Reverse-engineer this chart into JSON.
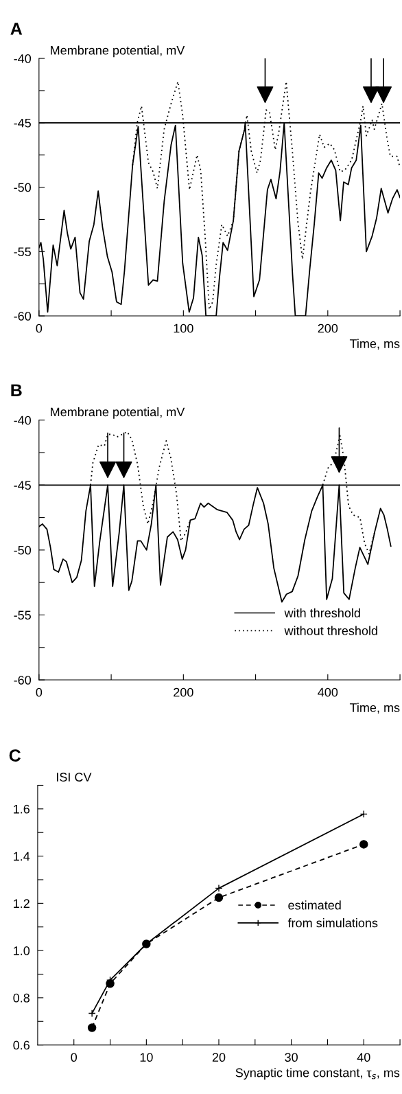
{
  "chart_data": [
    {
      "type": "line",
      "title": "A",
      "xlabel": "Time, ms",
      "ylabel": "Membrane potential, mV",
      "xlim": [
        0,
        250
      ],
      "ylim": [
        -60,
        -40
      ],
      "xticks": [
        0,
        {
          "value": 50,
          "label": null
        },
        100,
        {
          "value": 150,
          "label": null
        },
        200,
        {
          "value": 250,
          "label": null
        }
      ],
      "yticks": [
        -60,
        {
          "value": -57.5,
          "label": null
        },
        -55,
        {
          "value": -52.5,
          "label": null
        },
        -50,
        {
          "value": -47.5,
          "label": null
        },
        -45,
        {
          "value": -42.5,
          "label": null
        },
        -40
      ],
      "ref_lines": [
        {
          "axis": "y",
          "value": -45,
          "color": "#000000",
          "line_style": "solid"
        }
      ],
      "series": [
        {
          "color": "#000000",
          "line_style": "solid",
          "x": [
            0,
            1.3,
            3,
            6,
            9.8,
            12.6,
            17.4,
            19.7,
            22,
            25,
            28.4,
            30.8,
            34.8,
            38,
            41,
            44,
            47.4,
            50.6,
            53.7,
            56.9,
            59.2,
            64.8,
            68.7,
            75.8,
            79,
            82,
            86.7,
            91.5,
            94.5,
            99.5,
            104,
            107,
            110.4,
            113,
            115.6,
            122.7,
            125,
            127.5,
            130.6,
            134.6,
            138.5,
            142.4,
            142.8,
            148.8,
            152.7,
            158.2,
            160.6,
            164.2,
            166.9,
            169.8,
            175.6,
            177.5,
            184.6,
            187.4,
            190.6,
            193.7,
            196.1,
            199.2,
            202.4,
            205.5,
            208.7,
            211,
            214.2,
            216.5,
            219.7,
            222.8,
            226.7,
            230.7,
            233.8,
            237,
            241.7,
            244.8,
            248,
            250
          ],
          "values": [
            -54.7,
            -54.3,
            -55.6,
            -59.7,
            -54.5,
            -56.1,
            -51.8,
            -53.6,
            -54.8,
            -53.9,
            -58.2,
            -58.7,
            -54.2,
            -52.9,
            -50.3,
            -53.1,
            -55.4,
            -56.6,
            -58.9,
            -59.1,
            -56.5,
            -48.3,
            -45.3,
            -57.6,
            -57.2,
            -57.3,
            -51.1,
            -46.7,
            -45.2,
            -55.9,
            -59.7,
            -58.6,
            -53.9,
            -55.3,
            -60,
            -60,
            -57,
            -54.3,
            -54.9,
            -52.6,
            -47.2,
            -45.5,
            -45,
            -58.5,
            -57.2,
            -50.2,
            -49.4,
            -50.9,
            -48.8,
            -45,
            -56.8,
            -60,
            -60,
            -56.5,
            -52.9,
            -48.9,
            -49.3,
            -48.5,
            -47.9,
            -48.7,
            -52.6,
            -49.6,
            -49.8,
            -48.5,
            -47.9,
            -45.2,
            -55,
            -53.8,
            -52.4,
            -50.1,
            -52,
            -50.9,
            -50.2,
            -50.8
          ]
        },
        {
          "color": "#000000",
          "line_style": "dotted",
          "x": [
            64.8,
            68,
            71,
            75.8,
            79,
            82,
            86.7,
            91.5,
            96.2,
            99.5,
            104.2,
            109.5,
            112,
            115.2,
            117.9,
            120.3,
            122.6,
            126.6,
            130.6,
            134.6,
            138.5,
            142.4,
            144,
            147,
            151,
            153.4,
            157.3,
            159.7,
            163.6,
            166,
            171.2,
            175.4,
            179.3,
            182.5,
            184.9,
            188,
            194.3,
            197.5,
            201.4,
            204.6,
            208.5,
            211.7,
            216.5,
            222.8,
            224.4,
            226.7,
            230.7,
            232.2,
            237.5,
            241,
            243.3,
            248,
            250
          ],
          "values": [
            -48.3,
            -45,
            -43.7,
            -48.1,
            -48.8,
            -50.1,
            -45.5,
            -43.5,
            -41.8,
            -44.4,
            -50.2,
            -47.5,
            -48.7,
            -54.1,
            -59.5,
            -58.9,
            -56.1,
            -52.9,
            -53.8,
            -52.6,
            -47.2,
            -45.5,
            -44.4,
            -47.2,
            -48.9,
            -47.9,
            -44,
            -44.2,
            -47.1,
            -45.8,
            -41.8,
            -47.1,
            -52.7,
            -55.6,
            -53.3,
            -50.4,
            -45.9,
            -46.9,
            -46.6,
            -47.1,
            -48.8,
            -48.7,
            -47.9,
            -44.8,
            -43.7,
            -46,
            -44.8,
            -45.5,
            -43.5,
            -46.2,
            -47.6,
            -47.6,
            -48.5
          ]
        }
      ]
    },
    {
      "type": "line",
      "title": "B",
      "xlabel": "Time, ms",
      "ylabel": "Membrane potential, mV",
      "xlim": [
        0,
        500
      ],
      "ylim": [
        -60,
        -40
      ],
      "xticks": [
        0,
        {
          "value": 100,
          "label": null
        },
        200,
        {
          "value": 300,
          "label": null
        },
        400,
        {
          "value": 500,
          "label": null
        }
      ],
      "yticks": [
        -60,
        {
          "value": -57.5,
          "label": null
        },
        -55,
        {
          "value": -52.5,
          "label": null
        },
        -50,
        {
          "value": -47.5,
          "label": null
        },
        -45,
        {
          "value": -42.5,
          "label": null
        },
        -40
      ],
      "ref_lines": [
        {
          "axis": "y",
          "value": -45,
          "color": "#000000",
          "line_style": "solid"
        }
      ],
      "legend": "lower right",
      "series": [
        {
          "name": "with threshold",
          "color": "#000000",
          "line_style": "solid",
          "x": [
            0,
            4.8,
            11,
            15.9,
            20.6,
            27,
            33.3,
            38,
            46,
            52.4,
            58.7,
            65,
            71.4,
            76.8,
            84,
            95.2,
            102,
            111,
            117.5,
            124.4,
            128.6,
            136.5,
            141,
            149,
            155.6,
            162,
            168.3,
            177.8,
            185.7,
            192,
            198.4,
            203,
            209.5,
            216,
            223.8,
            228.6,
            234.4,
            247,
            260.3,
            268.3,
            273,
            277.7,
            284.1,
            290.4,
            296.8,
            302.5,
            311,
            317.4,
            325.3,
            336.4,
            342.8,
            350.7,
            358.7,
            368.2,
            377.7,
            385.7,
            393,
            398.4,
            406.3,
            415.8,
            422.2,
            429.5,
            438,
            444.4,
            455.5,
            465,
            473,
            477.7,
            482.5,
            487.3
          ],
          "values": [
            -48.2,
            -48,
            -48.4,
            -49.8,
            -51.5,
            -51.7,
            -50.7,
            -50.9,
            -52.5,
            -52.1,
            -50.8,
            -47,
            -45,
            -52.8,
            -49.4,
            -45,
            -52.8,
            -48.7,
            -45,
            -53.1,
            -52.4,
            -49.3,
            -49.3,
            -50,
            -48,
            -45,
            -52.7,
            -49,
            -48.6,
            -49.2,
            -50.7,
            -50,
            -47.7,
            -47.6,
            -46.4,
            -46.7,
            -46.4,
            -46.9,
            -47.1,
            -47.7,
            -48.6,
            -49.2,
            -48.4,
            -48.1,
            -46.5,
            -45.2,
            -46.4,
            -48,
            -51.4,
            -54,
            -53.4,
            -53.2,
            -52,
            -49.2,
            -47,
            -45.9,
            -45,
            -53.8,
            -52.2,
            -45,
            -53.3,
            -53.8,
            -51.4,
            -49.8,
            -51.1,
            -48.6,
            -46.8,
            -47.3,
            -48.4,
            -49.7
          ]
        },
        {
          "name": "without threshold",
          "color": "#000000",
          "line_style": "dotted",
          "x": [
            71.4,
            74.6,
            82.5,
            90.5,
            95.2,
            101.6,
            108,
            122.2,
            128.6,
            136.5,
            144.4,
            150.8,
            157.1,
            166.7,
            176.2,
            182.5,
            190.5,
            196.8,
            203,
            209.5,
            300,
            393,
            400.3,
            408.3,
            417,
            422.4,
            428.8,
            435.1,
            444.6,
            451,
            457.3,
            465
          ],
          "values": [
            -45,
            -43.3,
            -41.9,
            -42,
            -41.1,
            -41.1,
            -41.3,
            -40.9,
            -41.5,
            -43.4,
            -46.6,
            -48,
            -46.6,
            -43.6,
            -41.6,
            -42.9,
            -45.7,
            -49.3,
            -48.7,
            -47.7,
            null,
            -45,
            -43.7,
            -43.2,
            -41.2,
            -43,
            -46.6,
            -47.3,
            -47.5,
            -49.5,
            -50.3,
            -48.6
          ]
        }
      ]
    },
    {
      "type": "line",
      "title": "C",
      "xlabel": "Synaptic time constant, τ$_{s}$, ms",
      "ylabel": "ISI CV",
      "xlim": [
        -5,
        45
      ],
      "ylim": [
        0.6,
        1.7
      ],
      "xticks": [
        0,
        {
          "value": 5,
          "label": null
        },
        10,
        {
          "value": 15,
          "label": null
        },
        20,
        {
          "value": 25,
          "label": null
        },
        30,
        {
          "value": 35,
          "label": null
        },
        40,
        {
          "value": 45,
          "label": null
        }
      ],
      "yticks": [
        0.6,
        {
          "value": 0.7,
          "label": null
        },
        0.8,
        {
          "value": 0.9,
          "label": null
        },
        {
          "value": 1.0,
          "label": "1.0"
        },
        {
          "value": 1.1,
          "label": null
        },
        1.2,
        {
          "value": 1.3,
          "label": null
        },
        1.4,
        {
          "value": 1.5,
          "label": null
        },
        1.6,
        {
          "value": 1.7,
          "label": null
        }
      ],
      "legend": "center right",
      "series": [
        {
          "name": "estimated",
          "color": "#000000",
          "line_style": "dashed",
          "marker": "circle",
          "x": [
            2.5,
            5,
            10,
            20,
            40
          ],
          "values": [
            0.673,
            0.86,
            1.028,
            1.224,
            1.45
          ]
        },
        {
          "name": "from simulations",
          "color": "#000000",
          "line_style": "solid",
          "marker": "cross",
          "x": [
            2.5,
            5,
            10,
            20,
            40
          ],
          "values": [
            0.734,
            0.875,
            1.028,
            1.264,
            1.578
          ]
        }
      ]
    }
  ]
}
